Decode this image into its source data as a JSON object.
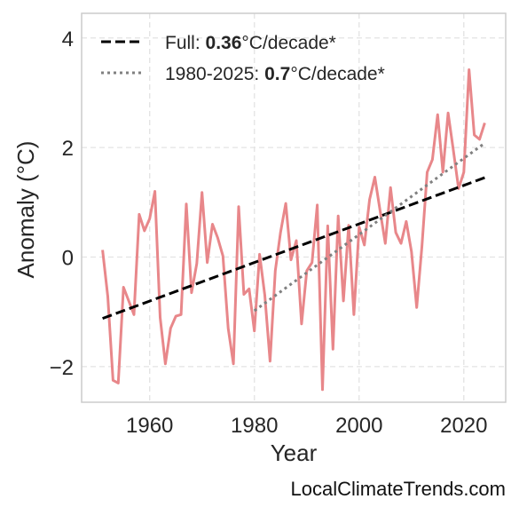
{
  "chart_data": {
    "type": "line",
    "title": "",
    "xlabel": "Year",
    "ylabel": "Anomaly (°C)",
    "xlim": [
      1947,
      2028
    ],
    "ylim": [
      -2.65,
      4.45
    ],
    "x_ticks": [
      1960,
      1980,
      2000,
      2020
    ],
    "x_tick_labels": [
      "1960",
      "1980",
      "2000",
      "2020"
    ],
    "y_ticks": [
      -2,
      0,
      2,
      4
    ],
    "y_tick_labels": [
      "−2",
      "0",
      "2",
      "4"
    ],
    "grid": true,
    "legend_position": "top-left",
    "series": [
      {
        "color": "#e8878a",
        "x": [
          1951,
          1952,
          1953,
          1954,
          1955,
          1956,
          1957,
          1958,
          1959,
          1960,
          1961,
          1962,
          1963,
          1964,
          1965,
          1966,
          1967,
          1968,
          1969,
          1970,
          1971,
          1972,
          1973,
          1974,
          1975,
          1976,
          1977,
          1978,
          1979,
          1980,
          1981,
          1982,
          1983,
          1984,
          1985,
          1986,
          1987,
          1988,
          1989,
          1990,
          1991,
          1992,
          1993,
          1994,
          1995,
          1996,
          1997,
          1998,
          1999,
          2000,
          2001,
          2002,
          2003,
          2004,
          2005,
          2006,
          2007,
          2008,
          2009,
          2010,
          2011,
          2012,
          2013,
          2014,
          2015,
          2016,
          2017,
          2018,
          2019,
          2020,
          2021,
          2022,
          2023,
          2024
        ],
        "y": [
          0.13,
          -0.72,
          -2.25,
          -2.3,
          -0.55,
          -0.8,
          -1.05,
          0.78,
          0.48,
          0.7,
          1.2,
          -1.1,
          -1.95,
          -1.3,
          -1.08,
          -1.05,
          0.97,
          -0.65,
          -0.12,
          1.18,
          -0.1,
          0.6,
          0.35,
          0.02,
          -1.3,
          -1.95,
          0.92,
          -0.68,
          -0.58,
          -1.35,
          0.05,
          -0.7,
          -1.9,
          -0.25,
          0.45,
          0.98,
          -0.05,
          0.3,
          -1.22,
          -0.25,
          -0.1,
          0.95,
          -2.42,
          0.57,
          -1.68,
          0.75,
          -0.8,
          0.58,
          -1.05,
          0.55,
          0.22,
          1.05,
          1.46,
          0.85,
          0.25,
          1.27,
          0.45,
          0.25,
          0.65,
          0.1,
          -0.92,
          0.2,
          1.55,
          1.78,
          2.6,
          1.55,
          2.63,
          1.95,
          1.25,
          1.55,
          3.42,
          2.23,
          2.15,
          2.45
        ]
      }
    ],
    "trends": [
      {
        "label_prefix": "Full: ",
        "label_value": "0.36",
        "label_suffix": "°C/decade*",
        "style": "dashed",
        "color": "#000000",
        "x": [
          1951,
          2024
        ],
        "y": [
          -1.12,
          1.45
        ]
      },
      {
        "label_prefix": "1980-2025: ",
        "label_value": "0.7",
        "label_suffix": "°C/decade*",
        "style": "dotted",
        "color": "#808080",
        "x": [
          1980,
          2024
        ],
        "y": [
          -0.98,
          2.08
        ]
      }
    ]
  },
  "watermark": "LocalClimateTrends.com"
}
